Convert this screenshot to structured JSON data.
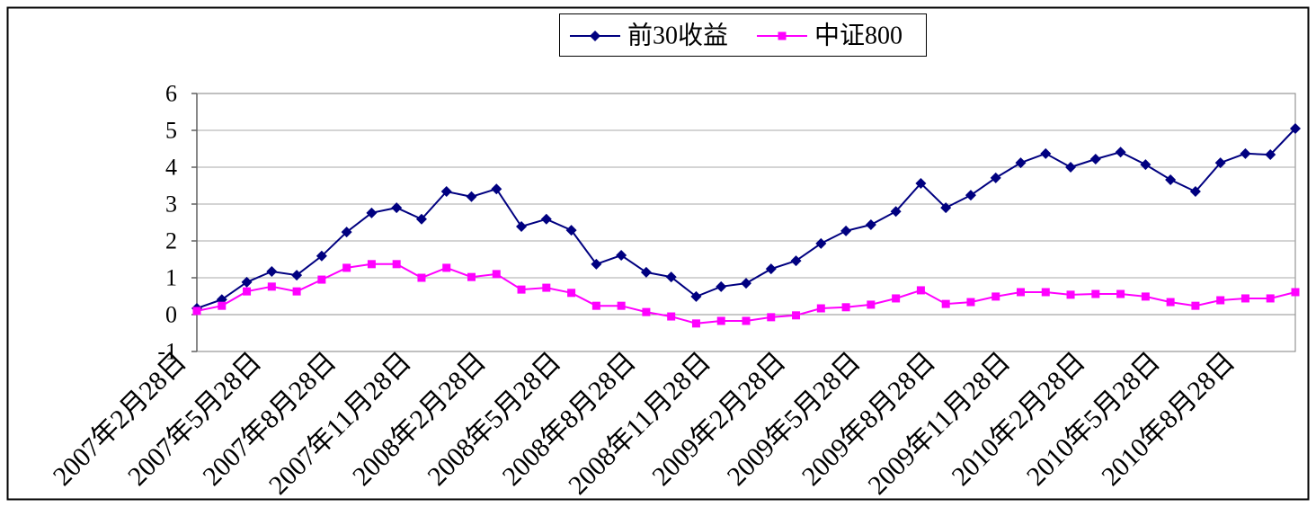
{
  "chart_data": {
    "type": "line",
    "categories": [
      "2007年2月28日",
      "",
      "",
      "2007年5月28日",
      "",
      "",
      "2007年8月28日",
      "",
      "",
      "2007年11月28日",
      "",
      "",
      "2008年2月28日",
      "",
      "",
      "2008年5月28日",
      "",
      "",
      "2008年8月28日",
      "",
      "",
      "2008年11月28日",
      "",
      "",
      "2009年2月28日",
      "",
      "",
      "2009年5月28日",
      "",
      "",
      "2009年8月28日",
      "",
      "",
      "2009年11月28日",
      "",
      "",
      "2010年2月28日",
      "",
      "",
      "2010年5月28日",
      "",
      "",
      "2010年8月28日",
      "",
      ""
    ],
    "series": [
      {
        "name": "前30收益",
        "color": "#000080",
        "marker": "diamond",
        "values": [
          0.17,
          0.41,
          0.88,
          1.17,
          1.07,
          1.59,
          2.24,
          2.76,
          2.9,
          2.59,
          3.34,
          3.2,
          3.41,
          2.39,
          2.59,
          2.29,
          1.37,
          1.61,
          1.15,
          1.02,
          0.49,
          0.76,
          0.85,
          1.24,
          1.46,
          1.93,
          2.27,
          2.44,
          2.8,
          3.56,
          2.9,
          3.24,
          3.71,
          4.12,
          4.37,
          4.0,
          4.22,
          4.41,
          4.07,
          3.66,
          3.34,
          4.12,
          4.37,
          4.34,
          5.05
        ]
      },
      {
        "name": "中证800",
        "color": "#FF00FF",
        "marker": "square",
        "values": [
          0.1,
          0.24,
          0.63,
          0.76,
          0.63,
          0.95,
          1.27,
          1.37,
          1.37,
          1.0,
          1.27,
          1.02,
          1.1,
          0.68,
          0.73,
          0.59,
          0.24,
          0.24,
          0.07,
          -0.05,
          -0.24,
          -0.17,
          -0.17,
          -0.07,
          -0.02,
          0.17,
          0.2,
          0.27,
          0.44,
          0.66,
          0.29,
          0.34,
          0.49,
          0.61,
          0.61,
          0.54,
          0.56,
          0.56,
          0.49,
          0.34,
          0.24,
          0.39,
          0.44,
          0.44,
          0.61
        ]
      }
    ],
    "ylim": [
      -1,
      6
    ],
    "yticks": [
      -1,
      0,
      1,
      2,
      3,
      4,
      5,
      6
    ],
    "grid": true,
    "legend": "top-center"
  }
}
